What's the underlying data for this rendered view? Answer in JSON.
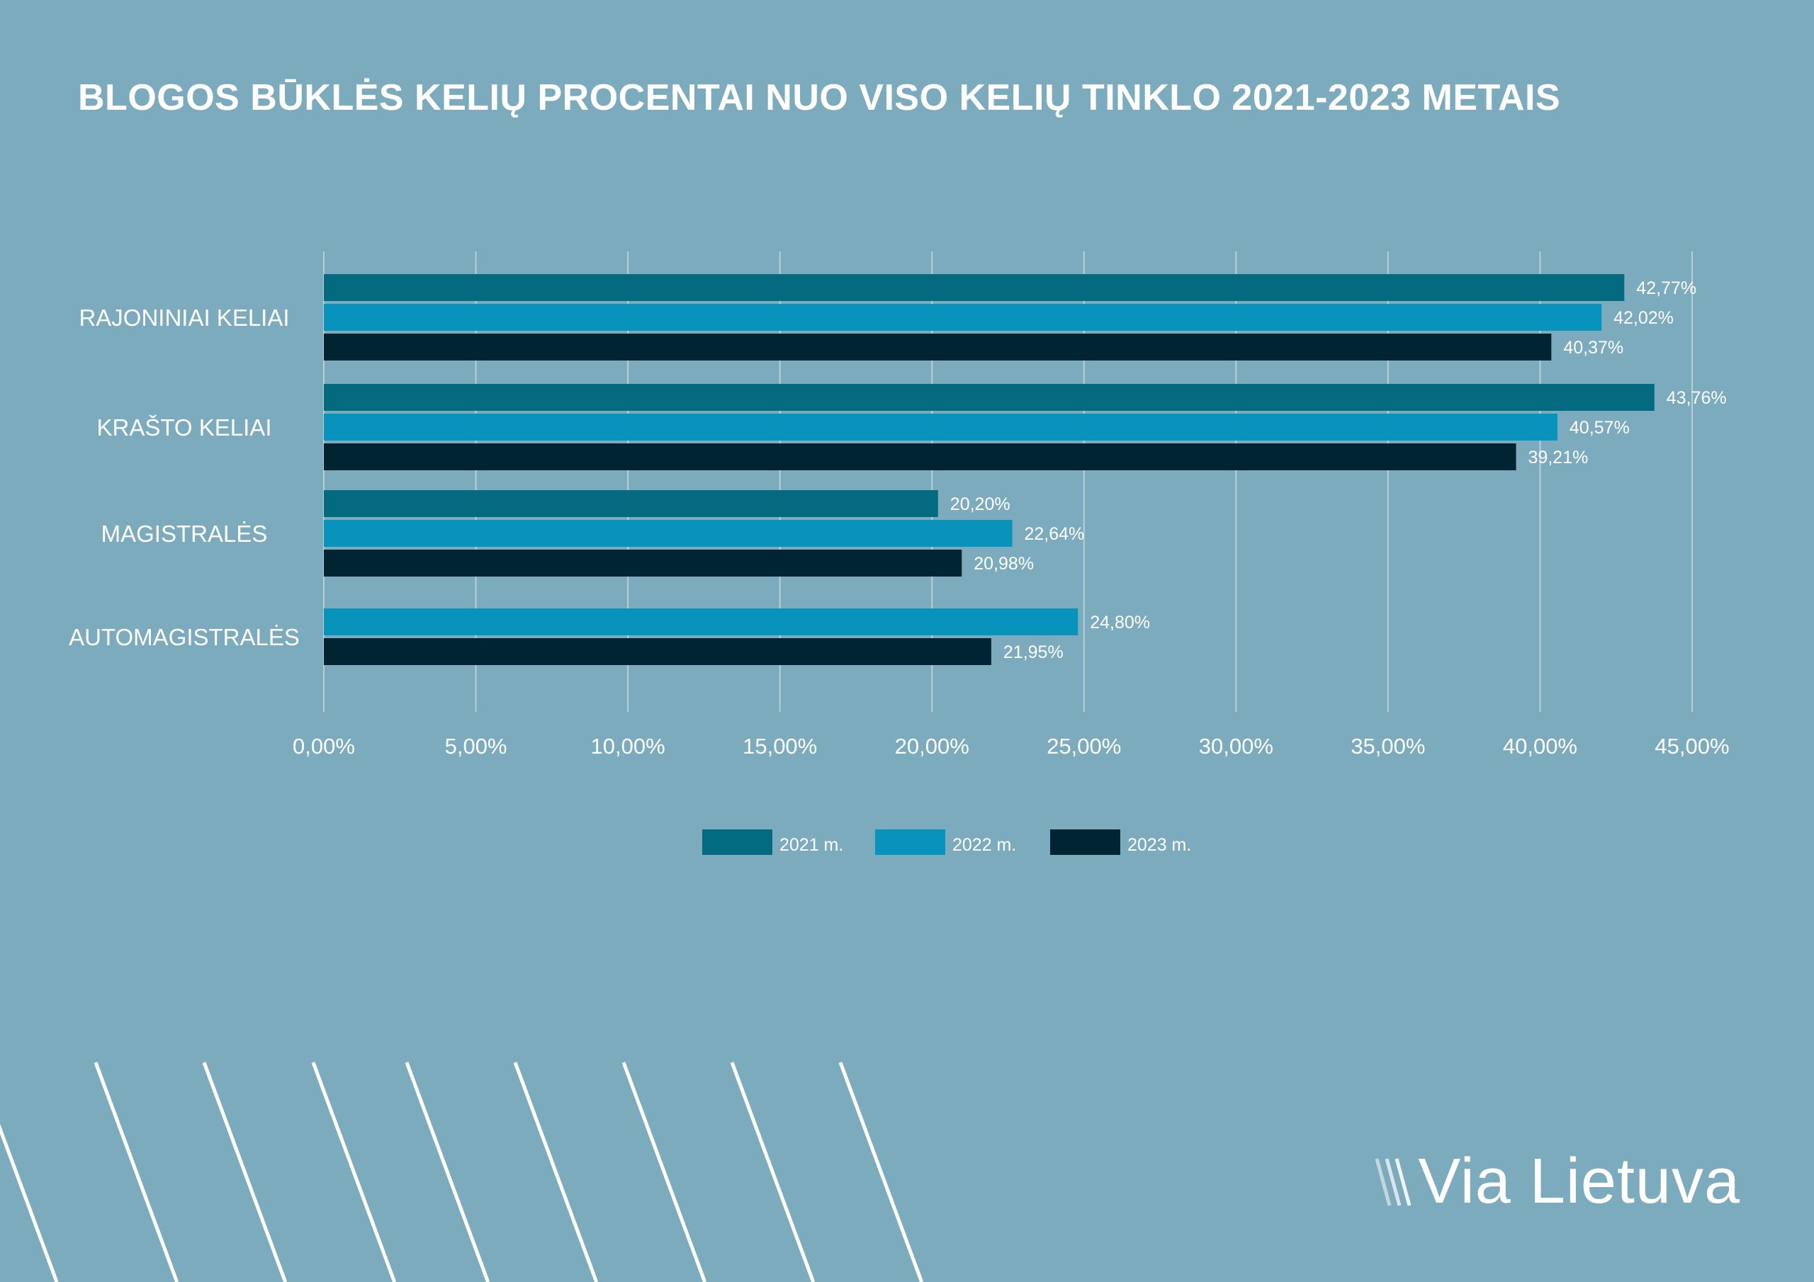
{
  "title": "BLOGOS BŪKLĖS KELIŲ PROCENTAI NUO VISO KELIŲ TINKLO 2021-2023 METAIS",
  "logo": {
    "text": "Via Lietuva"
  },
  "colors": {
    "background": "#7dabbe",
    "series_2021": "#046a80",
    "series_2022": "#0893bd",
    "series_2023": "#002431",
    "grid": "#b6cfd9",
    "text": "#ffffff"
  },
  "chart_data": {
    "type": "bar",
    "orientation": "horizontal",
    "categories": [
      "RAJONINIAI KELIAI",
      "KRAŠTO KELIAI",
      "MAGISTRALĖS",
      "AUTOMAGISTRALĖS"
    ],
    "series": [
      {
        "name": "2021 m.",
        "values": [
          42.77,
          43.76,
          20.2,
          null
        ],
        "labels": [
          "42,77%",
          "43,76%",
          "20,20%",
          null
        ]
      },
      {
        "name": "2022 m.",
        "values": [
          42.02,
          40.57,
          22.64,
          24.8
        ],
        "labels": [
          "42,02%",
          "40,57%",
          "22,64%",
          "24,80%"
        ]
      },
      {
        "name": "2023 m.",
        "values": [
          40.37,
          39.21,
          20.98,
          21.95
        ],
        "labels": [
          "40,37%",
          "39,21%",
          "20,98%",
          "21,95%"
        ]
      }
    ],
    "xlim": [
      0,
      45
    ],
    "xticks": [
      "0,00%",
      "5,00%",
      "10,00%",
      "15,00%",
      "20,00%",
      "25,00%",
      "30,00%",
      "35,00%",
      "40,00%",
      "45,00%"
    ],
    "grid": true,
    "legend_position": "bottom"
  }
}
